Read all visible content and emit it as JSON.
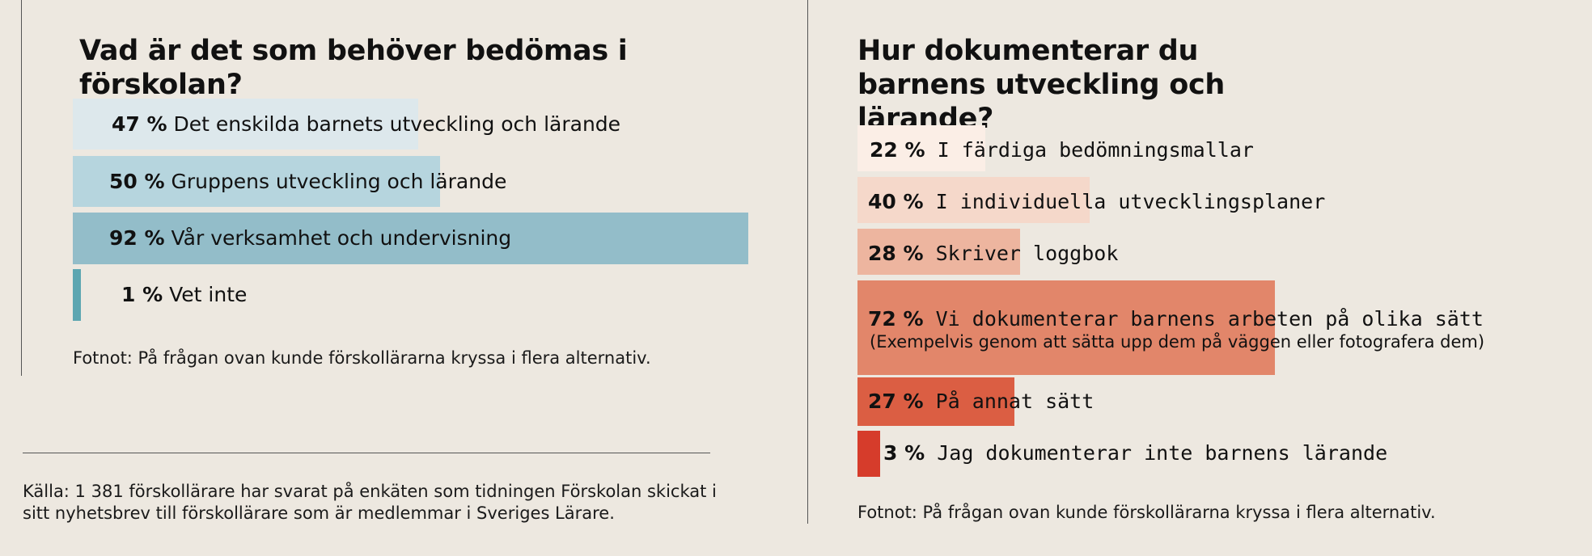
{
  "charts": {
    "left": {
      "title": "Vad är det som behöver bedömas i förskolan?",
      "footnote": "Fotnot: På frågan ovan kunde förskollärarna kryssa i flera alternativ.",
      "source": "Källa: 1 381 förskollärare har svarat på enkäten som tidningen Förskolan skickat i sitt nyhetsbrev till förskollärare som är medlemmar i Sveriges Lärare."
    },
    "right": {
      "title": "Hur dokumenterar du barnens utveckling och lärande?",
      "footnote": "Fotnot: På frågan ovan kunde förskollärarna kryssa i flera alternativ."
    }
  },
  "chart_data": [
    {
      "type": "bar",
      "orientation": "horizontal",
      "title": "Vad är det som behöver bedömas i förskolan?",
      "categories": [
        "Det enskilda barnets utveckling och lärande",
        "Gruppens utveckling och lärande",
        "Vår verksamhet och undervisning",
        "Vet inte"
      ],
      "values": [
        47,
        50,
        92,
        1
      ],
      "value_labels": [
        "47 %",
        "50 %",
        "92 %",
        "1 %"
      ],
      "colors": [
        "#dde8ec",
        "#b6d5de",
        "#93bdc9",
        "#5da6b1"
      ],
      "xlim": [
        0,
        100
      ],
      "grid": false
    },
    {
      "type": "bar",
      "orientation": "horizontal",
      "title": "Hur dokumenterar du barnens utveckling och lärande?",
      "categories": [
        "I färdiga bedömningsmallar",
        "I individuella utvecklingsplaner",
        "Skriver loggbok",
        "Vi dokumenterar barnens arbeten på olika sätt",
        "På annat sätt",
        "Jag dokumenterar inte barnens lärande"
      ],
      "values": [
        22,
        40,
        28,
        72,
        27,
        3
      ],
      "value_labels": [
        "22 %",
        "40 %",
        "28 %",
        "72 %",
        "27 %",
        "3 %"
      ],
      "annotation": "(Exempelvis genom att sätta upp dem på väggen eller fotografera dem)",
      "colors": [
        "#fbeee6",
        "#f5d8ca",
        "#edb59f",
        "#e2866a",
        "#db5e43",
        "#d63c2b"
      ],
      "xlim": [
        0,
        100
      ],
      "grid": false
    }
  ]
}
